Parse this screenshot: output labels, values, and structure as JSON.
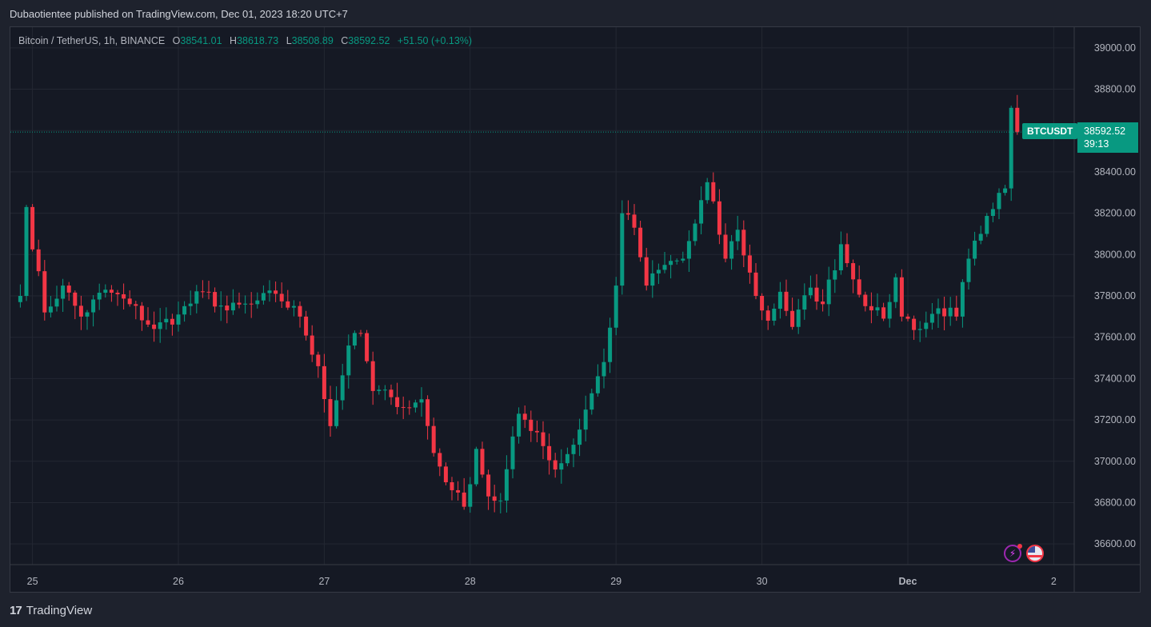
{
  "header": {
    "publisher": "Dubaotientee published on TradingView.com, Dec 01, 2023 18:20 UTC+7"
  },
  "legend": {
    "symbol": "Bitcoin / TetherUS, 1h, BINANCE",
    "open_label": "O",
    "open": "38541.01",
    "high_label": "H",
    "high": "38618.73",
    "low_label": "L",
    "low": "38508.89",
    "close_label": "C",
    "close": "38592.52",
    "change": "+51.50 (+0.13%)"
  },
  "price_tag": {
    "name": "BTCUSDT",
    "price": "38592.52",
    "countdown": "39:13"
  },
  "footer": {
    "brand": "TradingView",
    "logo": "17"
  },
  "icons": [
    "bolt-icon",
    "us-flag-icon"
  ],
  "colors": {
    "up": "#089981",
    "down": "#f23645",
    "background": "#151924",
    "grid": "#232732",
    "text": "#b2b5be"
  },
  "chart_data": {
    "type": "candlestick",
    "symbol": "BTCUSDT",
    "interval": "1h",
    "ylim": [
      36500,
      39100
    ],
    "y_ticks": [
      "39000.00",
      "38800.00",
      "38600.00",
      "38400.00",
      "38200.00",
      "38000.00",
      "37800.00",
      "37600.00",
      "37400.00",
      "37200.00",
      "37000.00",
      "36800.00",
      "36600.00"
    ],
    "x_ticks": [
      "25",
      "26",
      "27",
      "28",
      "29",
      "30",
      "Dec",
      "2"
    ],
    "last_price": 38592.52,
    "anchors": [
      [
        "Nov 24 22:00",
        37800
      ],
      [
        "Nov 24 23:00",
        38230
      ],
      [
        "Nov 25 02:00",
        37720
      ],
      [
        "Nov 25 05:00",
        37850
      ],
      [
        "Nov 25 08:00",
        37700
      ],
      [
        "Nov 25 12:00",
        37830
      ],
      [
        "Nov 25 16:00",
        37760
      ],
      [
        "Nov 25 20:00",
        37640
      ],
      [
        "Nov 26 00:00",
        37710
      ],
      [
        "Nov 26 04:00",
        37820
      ],
      [
        "Nov 26 08:00",
        37730
      ],
      [
        "Nov 26 12:00",
        37760
      ],
      [
        "Nov 26 16:00",
        37810
      ],
      [
        "Nov 26 20:00",
        37700
      ],
      [
        "Nov 26 23:00",
        37460
      ],
      [
        "Nov 27 01:00",
        37170
      ],
      [
        "Nov 27 04:00",
        37560
      ],
      [
        "Nov 27 06:00",
        37620
      ],
      [
        "Nov 27 08:00",
        37340
      ],
      [
        "Nov 27 11:00",
        37310
      ],
      [
        "Nov 27 14:00",
        37260
      ],
      [
        "Nov 27 16:00",
        37300
      ],
      [
        "Nov 27 18:00",
        37040
      ],
      [
        "Nov 27 21:00",
        36860
      ],
      [
        "Nov 27 23:00",
        36780
      ],
      [
        "Nov 28 01:00",
        37060
      ],
      [
        "Nov 28 03:00",
        36830
      ],
      [
        "Nov 28 05:00",
        36810
      ],
      [
        "Nov 28 08:00",
        37230
      ],
      [
        "Nov 28 11:00",
        37140
      ],
      [
        "Nov 28 14:00",
        36960
      ],
      [
        "Nov 28 17:00",
        37080
      ],
      [
        "Nov 28 19:00",
        37250
      ],
      [
        "Nov 28 22:00",
        37480
      ],
      [
        "Nov 29 00:00",
        37850
      ],
      [
        "Nov 29 01:00",
        38200
      ],
      [
        "Nov 29 03:00",
        38130
      ],
      [
        "Nov 29 05:00",
        37850
      ],
      [
        "Nov 29 08:00",
        37950
      ],
      [
        "Nov 29 11:00",
        37980
      ],
      [
        "Nov 29 13:00",
        38150
      ],
      [
        "Nov 29 15:00",
        38350
      ],
      [
        "Nov 29 18:00",
        37980
      ],
      [
        "Nov 29 20:00",
        38120
      ],
      [
        "Nov 29 23:00",
        37800
      ],
      [
        "Nov 30 01:00",
        37680
      ],
      [
        "Nov 30 03:00",
        37820
      ],
      [
        "Nov 30 05:00",
        37650
      ],
      [
        "Nov 30 08:00",
        37840
      ],
      [
        "Nov 30 10:00",
        37760
      ],
      [
        "Nov 30 13:00",
        38050
      ],
      [
        "Nov 30 15:00",
        37880
      ],
      [
        "Nov 30 18:00",
        37730
      ],
      [
        "Nov 30 20:00",
        37690
      ],
      [
        "Nov 30 22:00",
        37890
      ],
      [
        "Nov 30 23:00",
        37700
      ],
      [
        "Dec 01 02:00",
        37640
      ],
      [
        "Dec 01 05:00",
        37740
      ],
      [
        "Dec 01 08:00",
        37700
      ],
      [
        "Dec 01 10:00",
        37980
      ],
      [
        "Dec 01 12:00",
        38100
      ],
      [
        "Dec 01 14:00",
        38220
      ],
      [
        "Dec 01 16:00",
        38320
      ],
      [
        "Dec 01 17:00",
        38710
      ],
      [
        "Dec 01 18:00",
        38592
      ]
    ]
  }
}
